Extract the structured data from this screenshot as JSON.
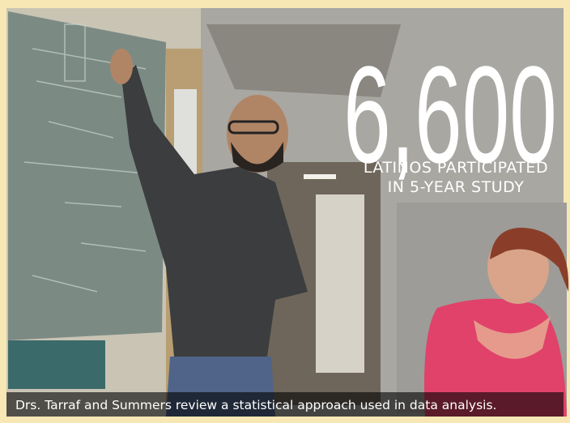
{
  "stat": {
    "number": "6,600",
    "lines": [
      "LATINOS PARTICIPATED",
      "IN 5-YEAR STUDY"
    ]
  },
  "caption": "Drs. Tarraf and Summers review a statistical approach used in data analysis."
}
